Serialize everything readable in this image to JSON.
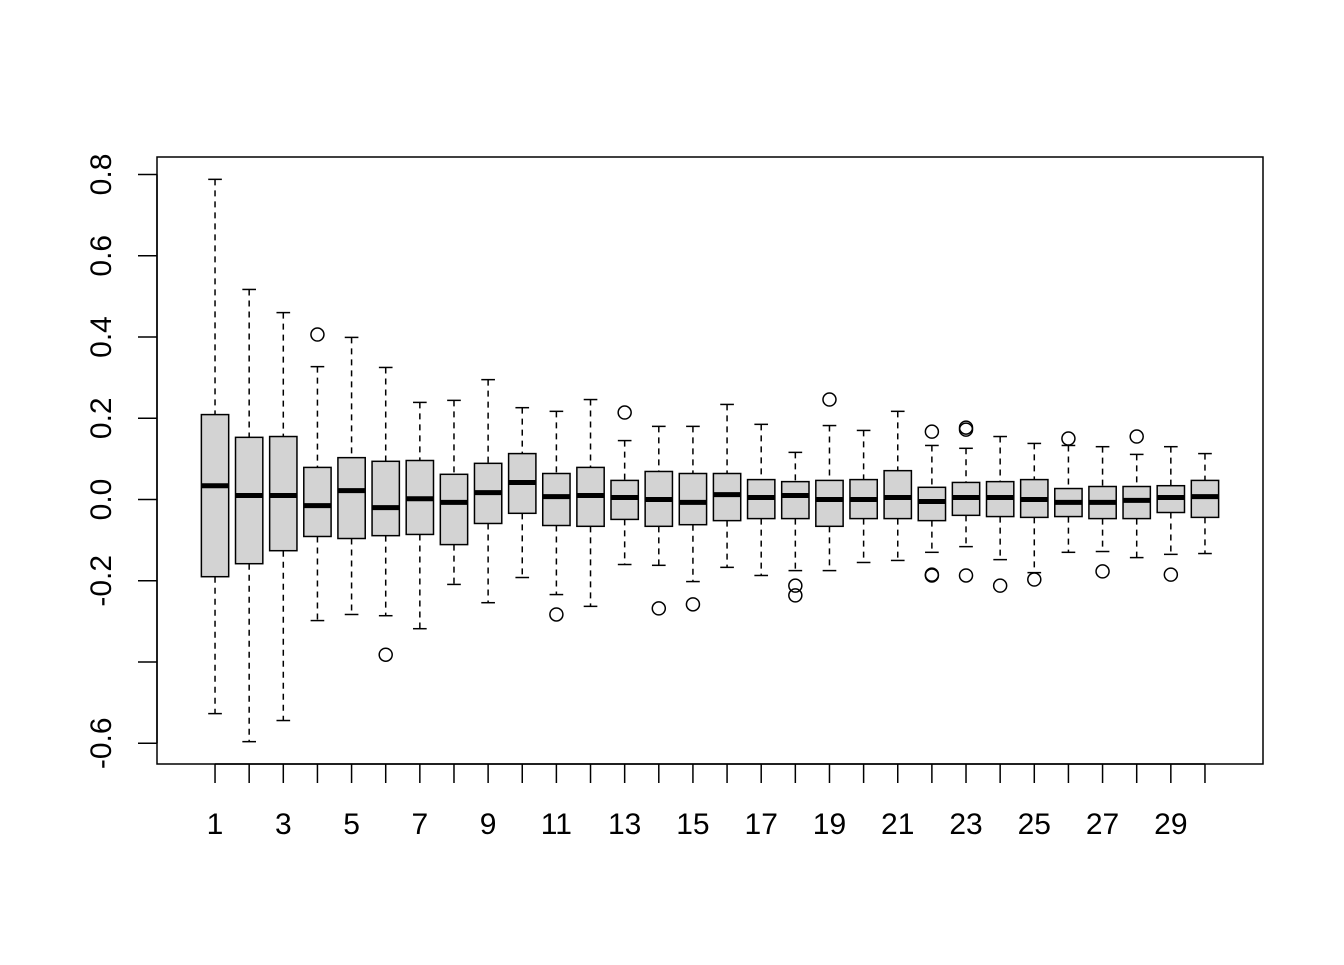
{
  "chart_data": {
    "type": "boxplot",
    "title": "",
    "xlabel": "",
    "ylabel": "",
    "ylim": [
      -0.651,
      0.843
    ],
    "xlim": [
      0.5,
      30.5
    ],
    "grid": false,
    "legend": "none",
    "box_fill": "#d3d3d3",
    "y_ticks": [
      -0.6,
      -0.4,
      -0.2,
      0.0,
      0.2,
      0.4,
      0.6,
      0.8
    ],
    "y_tick_labels": [
      "-0.6",
      "",
      "-0.2",
      "0.0",
      "0.2",
      "0.4",
      "0.6",
      "0.8"
    ],
    "x_ticks": [
      1,
      2,
      3,
      4,
      5,
      6,
      7,
      8,
      9,
      10,
      11,
      12,
      13,
      14,
      15,
      16,
      17,
      18,
      19,
      20,
      21,
      22,
      23,
      24,
      25,
      26,
      27,
      28,
      29,
      30
    ],
    "x_tick_labels": [
      "1",
      "",
      "3",
      "",
      "5",
      "",
      "7",
      "",
      "9",
      "",
      "11",
      "",
      "13",
      "",
      "15",
      "",
      "17",
      "",
      "19",
      "",
      "21",
      "",
      "23",
      "",
      "25",
      "",
      "27",
      "",
      "29",
      ""
    ],
    "boxes": [
      {
        "x": 1,
        "lower": -0.527,
        "q1": -0.19,
        "median": 0.034,
        "q3": 0.209,
        "upper": 0.788,
        "outliers": []
      },
      {
        "x": 2,
        "lower": -0.596,
        "q1": -0.158,
        "median": 0.01,
        "q3": 0.153,
        "upper": 0.517,
        "outliers": []
      },
      {
        "x": 3,
        "lower": -0.544,
        "q1": -0.126,
        "median": 0.01,
        "q3": 0.155,
        "upper": 0.46,
        "outliers": []
      },
      {
        "x": 4,
        "lower": -0.298,
        "q1": -0.091,
        "median": -0.015,
        "q3": 0.079,
        "upper": 0.327,
        "outliers": [
          0.406
        ]
      },
      {
        "x": 5,
        "lower": -0.283,
        "q1": -0.096,
        "median": 0.022,
        "q3": 0.103,
        "upper": 0.399,
        "outliers": []
      },
      {
        "x": 6,
        "lower": -0.286,
        "q1": -0.089,
        "median": -0.02,
        "q3": 0.094,
        "upper": 0.325,
        "outliers": [
          -0.382
        ]
      },
      {
        "x": 7,
        "lower": -0.318,
        "q1": -0.086,
        "median": 0.002,
        "q3": 0.096,
        "upper": 0.239,
        "outliers": []
      },
      {
        "x": 8,
        "lower": -0.209,
        "q1": -0.111,
        "median": -0.007,
        "q3": 0.062,
        "upper": 0.244,
        "outliers": []
      },
      {
        "x": 9,
        "lower": -0.254,
        "q1": -0.059,
        "median": 0.017,
        "q3": 0.089,
        "upper": 0.295,
        "outliers": []
      },
      {
        "x": 10,
        "lower": -0.192,
        "q1": -0.034,
        "median": 0.042,
        "q3": 0.113,
        "upper": 0.226,
        "outliers": []
      },
      {
        "x": 11,
        "lower": -0.234,
        "q1": -0.064,
        "median": 0.007,
        "q3": 0.064,
        "upper": 0.217,
        "outliers": [
          -0.283
        ]
      },
      {
        "x": 12,
        "lower": -0.263,
        "q1": -0.066,
        "median": 0.01,
        "q3": 0.079,
        "upper": 0.246,
        "outliers": []
      },
      {
        "x": 13,
        "lower": -0.16,
        "q1": -0.049,
        "median": 0.005,
        "q3": 0.047,
        "upper": 0.145,
        "outliers": [
          0.214
        ]
      },
      {
        "x": 14,
        "lower": -0.162,
        "q1": -0.066,
        "median": 0.0,
        "q3": 0.069,
        "upper": 0.18,
        "outliers": [
          -0.268
        ]
      },
      {
        "x": 15,
        "lower": -0.202,
        "q1": -0.062,
        "median": -0.007,
        "q3": 0.064,
        "upper": 0.18,
        "outliers": [
          -0.258
        ]
      },
      {
        "x": 16,
        "lower": -0.167,
        "q1": -0.052,
        "median": 0.012,
        "q3": 0.064,
        "upper": 0.234,
        "outliers": []
      },
      {
        "x": 17,
        "lower": -0.187,
        "q1": -0.047,
        "median": 0.005,
        "q3": 0.049,
        "upper": 0.185,
        "outliers": []
      },
      {
        "x": 18,
        "lower": -0.175,
        "q1": -0.047,
        "median": 0.01,
        "q3": 0.044,
        "upper": 0.116,
        "outliers": [
          -0.212,
          -0.236
        ]
      },
      {
        "x": 19,
        "lower": -0.175,
        "q1": -0.066,
        "median": 0.0,
        "q3": 0.047,
        "upper": 0.182,
        "outliers": [
          0.246
        ]
      },
      {
        "x": 20,
        "lower": -0.155,
        "q1": -0.047,
        "median": 0.0,
        "q3": 0.049,
        "upper": 0.17,
        "outliers": []
      },
      {
        "x": 21,
        "lower": -0.15,
        "q1": -0.047,
        "median": 0.005,
        "q3": 0.071,
        "upper": 0.217,
        "outliers": []
      },
      {
        "x": 22,
        "lower": -0.13,
        "q1": -0.052,
        "median": -0.005,
        "q3": 0.03,
        "upper": 0.133,
        "outliers": [
          0.167,
          -0.185,
          -0.187
        ]
      },
      {
        "x": 23,
        "lower": -0.116,
        "q1": -0.039,
        "median": 0.005,
        "q3": 0.042,
        "upper": 0.126,
        "outliers": [
          0.177,
          0.172,
          -0.187
        ]
      },
      {
        "x": 24,
        "lower": -0.148,
        "q1": -0.042,
        "median": 0.005,
        "q3": 0.044,
        "upper": 0.155,
        "outliers": [
          -0.212
        ]
      },
      {
        "x": 25,
        "lower": -0.18,
        "q1": -0.044,
        "median": 0.0,
        "q3": 0.049,
        "upper": 0.138,
        "outliers": [
          -0.197
        ]
      },
      {
        "x": 26,
        "lower": -0.13,
        "q1": -0.042,
        "median": -0.007,
        "q3": 0.027,
        "upper": 0.133,
        "outliers": [
          0.15
        ]
      },
      {
        "x": 27,
        "lower": -0.128,
        "q1": -0.047,
        "median": -0.007,
        "q3": 0.032,
        "upper": 0.13,
        "outliers": [
          -0.177
        ]
      },
      {
        "x": 28,
        "lower": -0.143,
        "q1": -0.047,
        "median": -0.002,
        "q3": 0.032,
        "upper": 0.111,
        "outliers": [
          0.155
        ]
      },
      {
        "x": 29,
        "lower": -0.135,
        "q1": -0.032,
        "median": 0.005,
        "q3": 0.034,
        "upper": 0.13,
        "outliers": [
          -0.185
        ]
      },
      {
        "x": 30,
        "lower": -0.133,
        "q1": -0.044,
        "median": 0.007,
        "q3": 0.047,
        "upper": 0.113,
        "outliers": []
      }
    ]
  }
}
